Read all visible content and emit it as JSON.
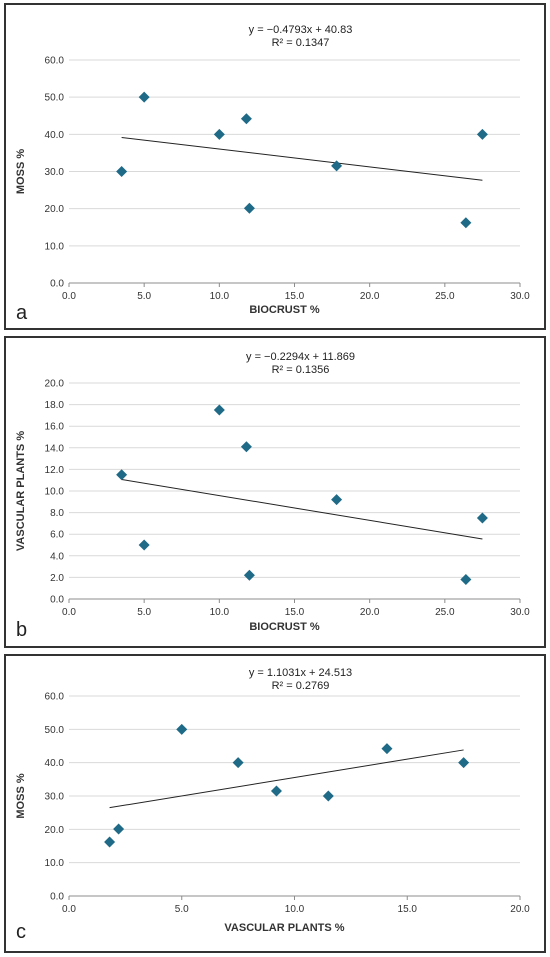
{
  "chart_data": [
    {
      "type": "scatter",
      "panel_label": "a",
      "equation": "y = −0.4793x + 40.83",
      "r2": "R² = 0.1347",
      "xlabel": "BIOCRUST %",
      "ylabel": "MOSS %",
      "xlim": [
        0,
        30
      ],
      "xstep": 5,
      "ylim": [
        0,
        60
      ],
      "ystep": 10,
      "x_tick_labels": [
        "0.0",
        "5.0",
        "10.0",
        "15.0",
        "20.0",
        "25.0",
        "30.0"
      ],
      "y_tick_labels": [
        "0.0",
        "10.0",
        "20.0",
        "30.0",
        "40.0",
        "50.0",
        "60.0"
      ],
      "grid": "horizontal",
      "marker_color": "#1f6a87",
      "points": [
        {
          "x": 3.5,
          "y": 30.0
        },
        {
          "x": 5.0,
          "y": 50.0
        },
        {
          "x": 10.0,
          "y": 40.0
        },
        {
          "x": 11.8,
          "y": 44.2
        },
        {
          "x": 12.0,
          "y": 20.1
        },
        {
          "x": 17.8,
          "y": 31.5
        },
        {
          "x": 26.4,
          "y": 16.2
        },
        {
          "x": 27.5,
          "y": 40.0
        }
      ],
      "trendline": {
        "slope": -0.4793,
        "intercept": 40.83,
        "x_range": [
          3.5,
          27.5
        ]
      }
    },
    {
      "type": "scatter",
      "panel_label": "b",
      "equation": "y = −0.2294x + 11.869",
      "r2": "R² = 0.1356",
      "xlabel": "BIOCRUST %",
      "ylabel": "VASCULAR PLANTS %",
      "xlim": [
        0,
        30
      ],
      "xstep": 5,
      "ylim": [
        0,
        20
      ],
      "ystep": 2,
      "x_tick_labels": [
        "0.0",
        "5.0",
        "10.0",
        "15.0",
        "20.0",
        "25.0",
        "30.0"
      ],
      "y_tick_labels": [
        "0.0",
        "2.0",
        "4.0",
        "6.0",
        "8.0",
        "10.0",
        "12.0",
        "14.0",
        "16.0",
        "18.0",
        "20.0"
      ],
      "grid": "horizontal",
      "marker_color": "#1f6a87",
      "points": [
        {
          "x": 3.5,
          "y": 11.5
        },
        {
          "x": 5.0,
          "y": 5.0
        },
        {
          "x": 10.0,
          "y": 17.5
        },
        {
          "x": 11.8,
          "y": 14.1
        },
        {
          "x": 12.0,
          "y": 2.2
        },
        {
          "x": 17.8,
          "y": 9.2
        },
        {
          "x": 26.4,
          "y": 1.8
        },
        {
          "x": 27.5,
          "y": 7.5
        }
      ],
      "trendline": {
        "slope": -0.2294,
        "intercept": 11.869,
        "x_range": [
          3.5,
          27.5
        ]
      }
    },
    {
      "type": "scatter",
      "panel_label": "c",
      "equation": "y = 1.1031x + 24.513",
      "r2": "R² = 0.2769",
      "xlabel": "VASCULAR PLANTS %",
      "ylabel": "MOSS %",
      "xlim": [
        0,
        20
      ],
      "xstep": 5,
      "ylim": [
        0,
        60
      ],
      "ystep": 10,
      "x_tick_labels": [
        "0.0",
        "5.0",
        "10.0",
        "15.0",
        "20.0"
      ],
      "y_tick_labels": [
        "0.0",
        "10.0",
        "20.0",
        "30.0",
        "40.0",
        "50.0",
        "60.0"
      ],
      "grid": "horizontal",
      "marker_color": "#1f6a87",
      "points": [
        {
          "x": 1.8,
          "y": 16.2
        },
        {
          "x": 2.2,
          "y": 20.1
        },
        {
          "x": 5.0,
          "y": 50.0
        },
        {
          "x": 7.5,
          "y": 40.0
        },
        {
          "x": 9.2,
          "y": 31.5
        },
        {
          "x": 11.5,
          "y": 30.0
        },
        {
          "x": 14.1,
          "y": 44.2
        },
        {
          "x": 17.5,
          "y": 40.0
        }
      ],
      "trendline": {
        "slope": 1.1031,
        "intercept": 24.513,
        "x_range": [
          1.8,
          17.5
        ]
      }
    }
  ]
}
